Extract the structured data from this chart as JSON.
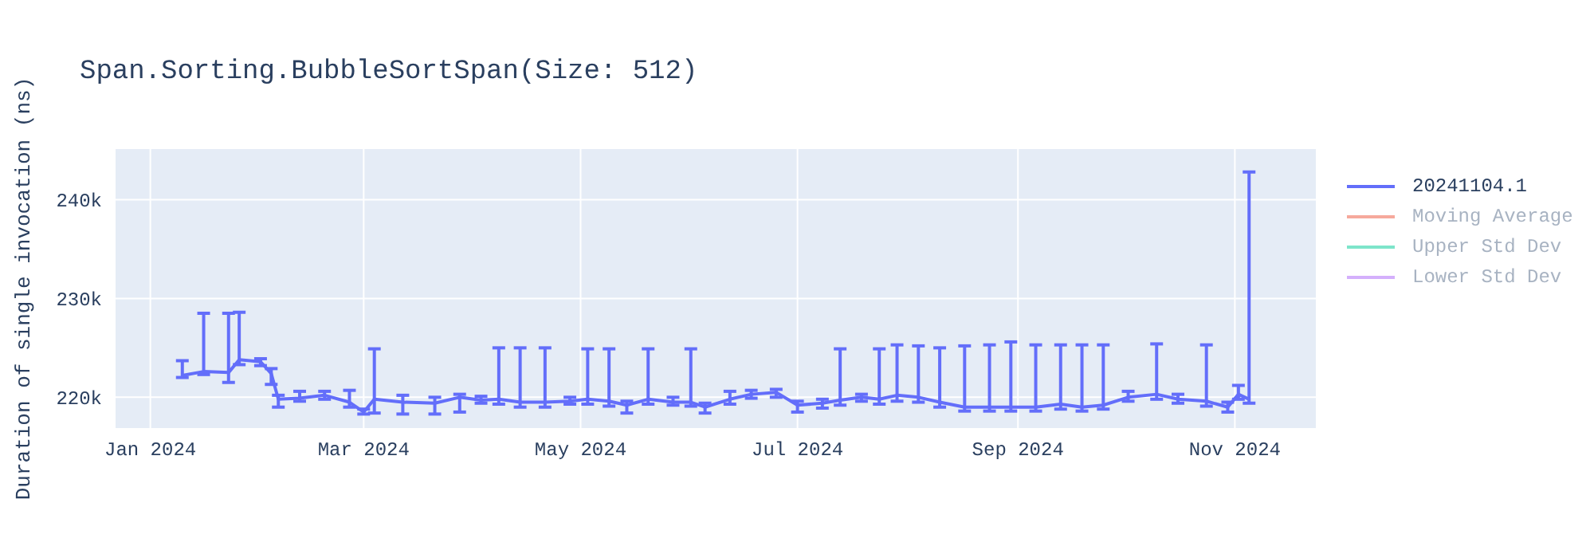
{
  "chart_data": {
    "type": "line",
    "title": "Span.Sorting.BubbleSortSpan(Size: 512)",
    "ylabel": "Duration of single invocation (ns)",
    "x": [
      "2024-01-10",
      "2024-01-16",
      "2024-01-23",
      "2024-01-26",
      "2024-02-01",
      "2024-02-04",
      "2024-02-06",
      "2024-02-12",
      "2024-02-19",
      "2024-02-26",
      "2024-03-01",
      "2024-03-04",
      "2024-03-12",
      "2024-03-21",
      "2024-03-28",
      "2024-04-03",
      "2024-04-08",
      "2024-04-14",
      "2024-04-21",
      "2024-04-28",
      "2024-05-03",
      "2024-05-09",
      "2024-05-14",
      "2024-05-20",
      "2024-05-27",
      "2024-06-01",
      "2024-06-05",
      "2024-06-12",
      "2024-06-18",
      "2024-06-25",
      "2024-07-01",
      "2024-07-08",
      "2024-07-13",
      "2024-07-19",
      "2024-07-24",
      "2024-07-29",
      "2024-08-04",
      "2024-08-10",
      "2024-08-17",
      "2024-08-24",
      "2024-08-30",
      "2024-09-06",
      "2024-09-13",
      "2024-09-19",
      "2024-09-25",
      "2024-10-02",
      "2024-10-10",
      "2024-10-16",
      "2024-10-24",
      "2024-10-30",
      "2024-11-02",
      "2024-11-05"
    ],
    "series": [
      {
        "name": "20241104.1",
        "color": "#636efa",
        "values": [
          222200,
          222600,
          222500,
          223800,
          223600,
          222400,
          219800,
          219900,
          220200,
          219500,
          218500,
          219800,
          219500,
          219400,
          220000,
          219700,
          219800,
          219500,
          219500,
          219600,
          219800,
          219600,
          219200,
          219800,
          219500,
          219500,
          219000,
          219800,
          220300,
          220500,
          219200,
          219400,
          219700,
          220000,
          219800,
          220200,
          220000,
          219500,
          219000,
          219000,
          219000,
          219000,
          219300,
          219000,
          219200,
          220000,
          220300,
          219800,
          219600,
          219000,
          220300,
          219800
        ],
        "errors": [
          [
            222000,
            223700
          ],
          [
            222300,
            228500
          ],
          [
            221500,
            228500
          ],
          [
            223300,
            228600
          ],
          [
            223200,
            223900
          ],
          [
            221300,
            222900
          ],
          [
            219000,
            220200
          ],
          [
            219600,
            220600
          ],
          [
            219800,
            220600
          ],
          [
            219000,
            220700
          ],
          [
            218300,
            218800
          ],
          [
            218400,
            224900
          ],
          [
            218300,
            220200
          ],
          [
            218300,
            220000
          ],
          [
            218500,
            220300
          ],
          [
            219400,
            220100
          ],
          [
            219300,
            225000
          ],
          [
            219000,
            225000
          ],
          [
            219000,
            225000
          ],
          [
            219300,
            220000
          ],
          [
            219300,
            224900
          ],
          [
            219100,
            224900
          ],
          [
            218400,
            219600
          ],
          [
            219300,
            224900
          ],
          [
            219200,
            220000
          ],
          [
            219100,
            224900
          ],
          [
            218400,
            219400
          ],
          [
            219300,
            220600
          ],
          [
            219900,
            220700
          ],
          [
            220000,
            220800
          ],
          [
            218500,
            219600
          ],
          [
            218900,
            219800
          ],
          [
            219200,
            224900
          ],
          [
            219600,
            220300
          ],
          [
            219300,
            224900
          ],
          [
            219600,
            225300
          ],
          [
            219500,
            225200
          ],
          [
            219000,
            225000
          ],
          [
            218600,
            225200
          ],
          [
            218600,
            225300
          ],
          [
            218600,
            225600
          ],
          [
            218600,
            225300
          ],
          [
            218800,
            225300
          ],
          [
            218600,
            225300
          ],
          [
            218800,
            225300
          ],
          [
            219600,
            220600
          ],
          [
            219800,
            225400
          ],
          [
            219400,
            220300
          ],
          [
            219100,
            225300
          ],
          [
            218500,
            219500
          ],
          [
            219800,
            221200
          ],
          [
            219400,
            242800
          ]
        ]
      },
      {
        "name": "Moving Average",
        "color": "#ef553b",
        "values": [
          null,
          null,
          null,
          null,
          null,
          null,
          null,
          null,
          null,
          null,
          null,
          null,
          null,
          null,
          null,
          null,
          null,
          null,
          null,
          null,
          null,
          null,
          null,
          null,
          null,
          null,
          null,
          null,
          null,
          null,
          null,
          null,
          null,
          null,
          null,
          null,
          null,
          null,
          null,
          null,
          null,
          null,
          null,
          null,
          null,
          null,
          null,
          null,
          null,
          null,
          null,
          null
        ]
      },
      {
        "name": "Upper Std Dev",
        "color": "#00cc96",
        "values": [
          null,
          null,
          null,
          null,
          null,
          null,
          null,
          null,
          null,
          null,
          null,
          null,
          null,
          null,
          null,
          null,
          null,
          null,
          null,
          null,
          null,
          null,
          null,
          null,
          null,
          null,
          null,
          null,
          null,
          null,
          null,
          null,
          null,
          null,
          null,
          null,
          null,
          null,
          null,
          null,
          null,
          null,
          null,
          null,
          null,
          null,
          null,
          null,
          null,
          null,
          null,
          null
        ]
      },
      {
        "name": "Lower Std Dev",
        "color": "#ab63fa",
        "values": [
          null,
          null,
          null,
          null,
          null,
          null,
          null,
          null,
          null,
          null,
          null,
          null,
          null,
          null,
          null,
          null,
          null,
          null,
          null,
          null,
          null,
          null,
          null,
          null,
          null,
          null,
          null,
          null,
          null,
          null,
          null,
          null,
          null,
          null,
          null,
          null,
          null,
          null,
          null,
          null,
          null,
          null,
          null,
          null,
          null,
          null,
          null,
          null,
          null,
          null,
          null,
          null
        ]
      }
    ],
    "xlim": [
      "2023-12-22",
      "2024-11-24"
    ],
    "xticks": [
      {
        "value": "2024-01-01",
        "label": "Jan 2024"
      },
      {
        "value": "2024-03-01",
        "label": "Mar 2024"
      },
      {
        "value": "2024-05-01",
        "label": "May 2024"
      },
      {
        "value": "2024-07-01",
        "label": "Jul 2024"
      },
      {
        "value": "2024-09-01",
        "label": "Sep 2024"
      },
      {
        "value": "2024-11-01",
        "label": "Nov 2024"
      }
    ],
    "ylim": [
      216800,
      245200
    ],
    "yticks": [
      {
        "value": 220000,
        "label": "220k"
      },
      {
        "value": 230000,
        "label": "230k"
      },
      {
        "value": 240000,
        "label": "240k"
      }
    ],
    "grid": true,
    "legend": "top right",
    "marker": "none",
    "line_style": "solid"
  }
}
